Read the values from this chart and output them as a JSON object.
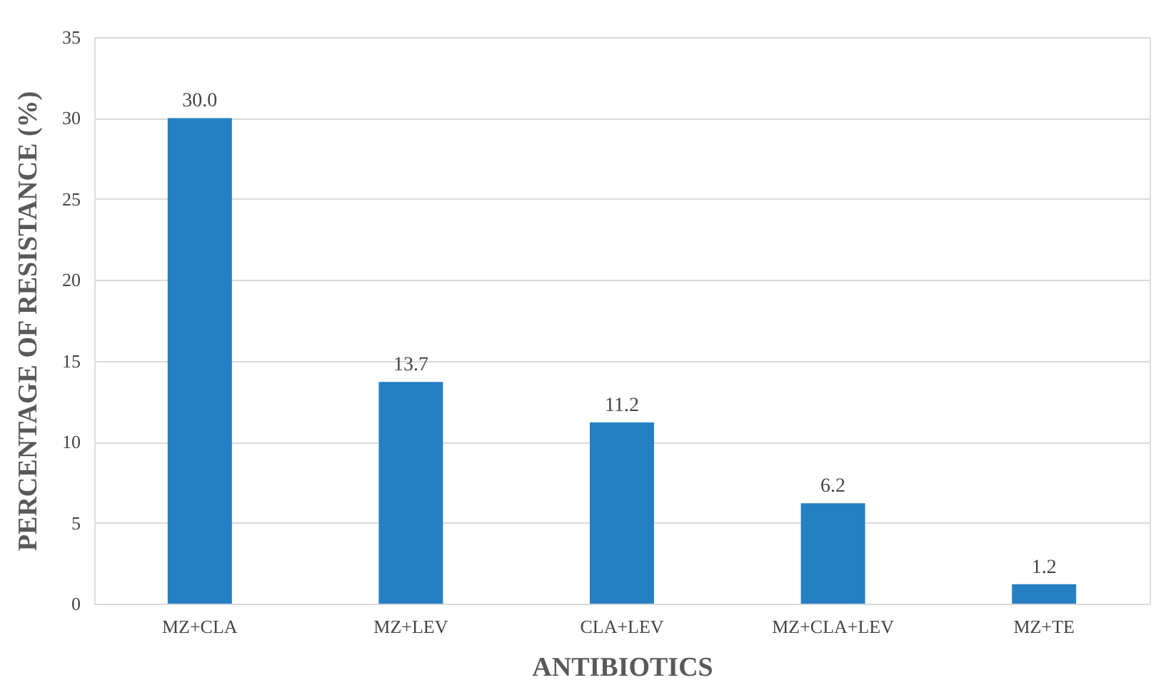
{
  "chart_data": {
    "type": "bar",
    "xlabel": "ANTIBIOTICS",
    "ylabel": "PERCENTAGE OF RESISTANCE (%)",
    "categories": [
      "MZ+CLA",
      "MZ+LEV",
      "CLA+LEV",
      "MZ+CLA+LEV",
      "MZ+TE"
    ],
    "values": [
      30.0,
      13.7,
      11.2,
      6.2,
      1.2
    ],
    "color": "#2580c3",
    "value_labels": [
      "30.0",
      "13.7",
      "11.2",
      "6.2",
      "1.2"
    ],
    "ylim": [
      0,
      35
    ],
    "yticks": [
      0,
      5,
      10,
      15,
      20,
      25,
      30,
      35
    ],
    "grid": "y"
  }
}
